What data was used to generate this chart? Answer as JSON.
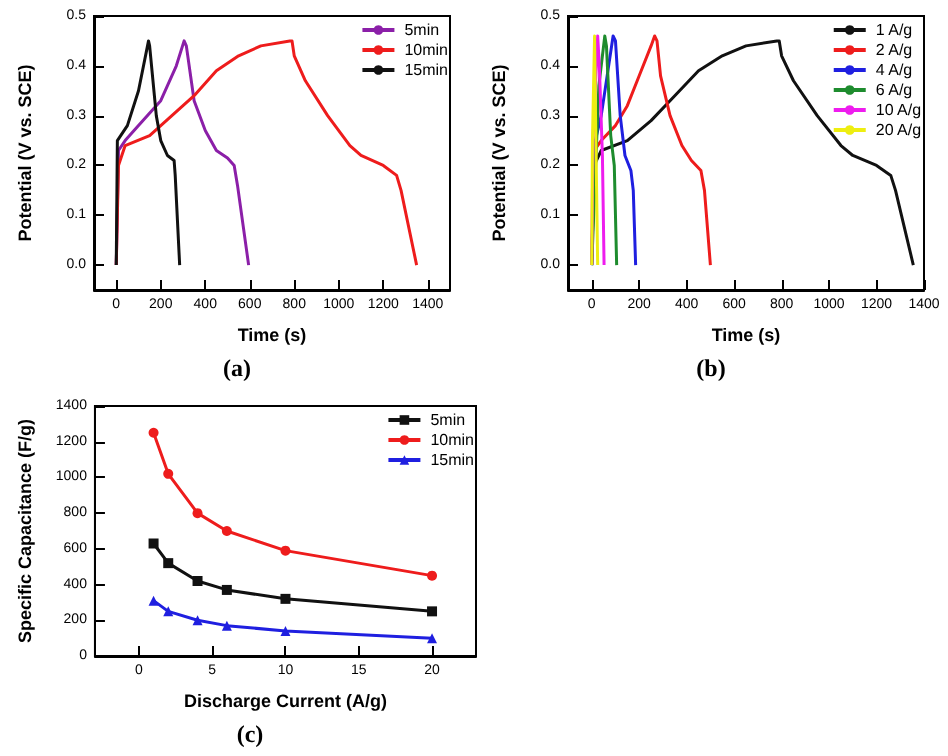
{
  "chart_data": [
    {
      "type": "line",
      "title": "(a)",
      "xlabel": "Time (s)",
      "ylabel": "Potential (V vs. SCE)",
      "xlim": [
        -100,
        1500
      ],
      "xticks": [
        0,
        200,
        400,
        600,
        800,
        1000,
        1200,
        1400
      ],
      "ylim": [
        -0.05,
        0.5
      ],
      "yticks": [
        {
          "value": 0,
          "label": "0.0"
        },
        0.1,
        0.2,
        0.3,
        0.4,
        0.5
      ],
      "legend": "top right",
      "grid": false,
      "marker": "none",
      "series": [
        {
          "name": "5min",
          "color": "#8b1fa8",
          "x": [
            0,
            10,
            40,
            100,
            200,
            270,
            305,
            315,
            350,
            400,
            450,
            500,
            530,
            545,
            595
          ],
          "values": [
            0,
            0.23,
            0.25,
            0.28,
            0.33,
            0.4,
            0.45,
            0.44,
            0.33,
            0.27,
            0.23,
            0.215,
            0.2,
            0.16,
            0
          ]
        },
        {
          "name": "10min",
          "color": "#ee1c1c",
          "x": [
            0,
            10,
            40,
            150,
            250,
            350,
            450,
            550,
            650,
            780,
            790,
            800,
            850,
            950,
            1050,
            1100,
            1200,
            1260,
            1280,
            1350
          ],
          "values": [
            0,
            0.2,
            0.24,
            0.26,
            0.3,
            0.34,
            0.39,
            0.42,
            0.44,
            0.45,
            0.45,
            0.42,
            0.37,
            0.3,
            0.24,
            0.22,
            0.2,
            0.18,
            0.15,
            0
          ]
        },
        {
          "name": "15min",
          "color": "#111111",
          "x": [
            0,
            5,
            20,
            50,
            100,
            145,
            150,
            180,
            200,
            230,
            260,
            265,
            285
          ],
          "values": [
            0,
            0.25,
            0.26,
            0.28,
            0.35,
            0.45,
            0.44,
            0.3,
            0.25,
            0.22,
            0.21,
            0.18,
            0
          ]
        }
      ]
    },
    {
      "type": "line",
      "title": "(b)",
      "xlabel": "Time (s)",
      "ylabel": "Potential (V vs. SCE)",
      "xlim": [
        -100,
        1400
      ],
      "xticks": [
        0,
        200,
        400,
        600,
        800,
        1000,
        1200,
        1400
      ],
      "ylim": [
        -0.05,
        0.5
      ],
      "yticks": [
        {
          "value": 0,
          "label": "0.0"
        },
        0.1,
        0.2,
        0.3,
        0.4,
        0.5
      ],
      "legend": "top right",
      "grid": false,
      "marker": "none",
      "series": [
        {
          "name": "1 A/g",
          "color": "#111111",
          "x": [
            0,
            10,
            40,
            150,
            250,
            350,
            450,
            550,
            650,
            780,
            790,
            800,
            850,
            950,
            1050,
            1100,
            1200,
            1260,
            1280,
            1355
          ],
          "values": [
            0,
            0.2,
            0.23,
            0.25,
            0.29,
            0.34,
            0.39,
            0.42,
            0.44,
            0.45,
            0.45,
            0.42,
            0.37,
            0.3,
            0.24,
            0.22,
            0.2,
            0.18,
            0.15,
            0
          ]
        },
        {
          "name": "2 A/g",
          "color": "#ee1c1c",
          "x": [
            0,
            10,
            40,
            100,
            150,
            200,
            250,
            265,
            275,
            290,
            330,
            380,
            420,
            460,
            475,
            500
          ],
          "values": [
            0,
            0.23,
            0.25,
            0.28,
            0.32,
            0.38,
            0.44,
            0.46,
            0.45,
            0.38,
            0.3,
            0.24,
            0.21,
            0.19,
            0.15,
            0
          ]
        },
        {
          "name": "4 A/g",
          "color": "#1f1fe0",
          "x": [
            0,
            10,
            40,
            90,
            100,
            120,
            140,
            165,
            175,
            185
          ],
          "values": [
            0,
            0.24,
            0.3,
            0.46,
            0.45,
            0.3,
            0.22,
            0.19,
            0.15,
            0
          ]
        },
        {
          "name": "6 A/g",
          "color": "#1e8c2e",
          "x": [
            0,
            30,
            55,
            62,
            80,
            95,
            105
          ],
          "values": [
            0,
            0.36,
            0.46,
            0.44,
            0.26,
            0.2,
            0
          ]
        },
        {
          "name": "10 A/g",
          "color": "#ee1cee",
          "x": [
            0,
            5,
            25,
            32,
            45,
            52
          ],
          "values": [
            0,
            0.25,
            0.46,
            0.4,
            0.22,
            0
          ]
        },
        {
          "name": "20 A/g",
          "color": "#eeee10",
          "x": [
            0,
            3,
            12,
            16,
            25
          ],
          "values": [
            0,
            0.25,
            0.46,
            0.3,
            0
          ]
        }
      ]
    },
    {
      "type": "line",
      "title": "(c)",
      "xlabel": "Discharge Current (A/g)",
      "ylabel": "Specific Capacitance (F/g)",
      "xlim": [
        -3,
        23
      ],
      "xticks": [
        0,
        5,
        10,
        15,
        20
      ],
      "ylim": [
        0,
        1400
      ],
      "yticks": [
        0,
        200,
        400,
        600,
        800,
        1000,
        1200,
        1400
      ],
      "legend": "top right",
      "grid": false,
      "series": [
        {
          "name": "5min",
          "color": "#111111",
          "marker": "square",
          "x": [
            1,
            2,
            4,
            6,
            10,
            20
          ],
          "values": [
            630,
            520,
            420,
            370,
            320,
            250
          ]
        },
        {
          "name": "10min",
          "color": "#ee1c1c",
          "marker": "circle",
          "x": [
            1,
            2,
            4,
            6,
            10,
            20
          ],
          "values": [
            1250,
            1020,
            800,
            700,
            590,
            450
          ]
        },
        {
          "name": "15min",
          "color": "#1f1fe0",
          "marker": "triangle",
          "x": [
            1,
            2,
            4,
            6,
            10,
            20
          ],
          "values": [
            310,
            250,
            200,
            170,
            140,
            100
          ]
        }
      ]
    }
  ]
}
